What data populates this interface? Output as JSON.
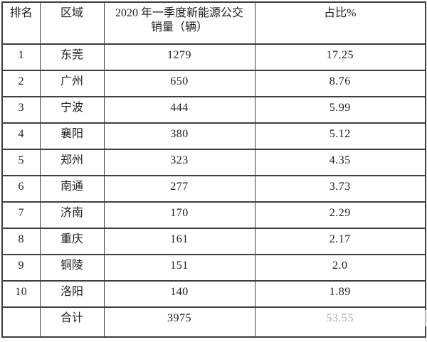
{
  "colors": {
    "border": "#3e3e3e",
    "text": "#1e1e1e",
    "background": "#ffffff"
  },
  "chart_data": {
    "type": "table",
    "columns": [
      "排名",
      "区域",
      "2020 年一季度新能源公交销量（辆）",
      "占比%"
    ],
    "header_lines": {
      "rank": "排名",
      "region": "区域",
      "sales_line1": "2020 年一季度新能源公交",
      "sales_line2": "销量（辆）",
      "share": "占比%"
    },
    "rows": [
      [
        "1",
        "东莞",
        "1279",
        "17.25"
      ],
      [
        "2",
        "广州",
        "650",
        "8.76"
      ],
      [
        "3",
        "宁波",
        "444",
        "5.99"
      ],
      [
        "4",
        "襄阳",
        "380",
        "5.12"
      ],
      [
        "5",
        "郑州",
        "323",
        "4.35"
      ],
      [
        "6",
        "南通",
        "277",
        "3.73"
      ],
      [
        "7",
        "济南",
        "170",
        "2.29"
      ],
      [
        "8",
        "重庆",
        "161",
        "2.17"
      ],
      [
        "9",
        "铜陵",
        "151",
        "2.0"
      ],
      [
        "10",
        "洛阳",
        "140",
        "1.89"
      ],
      [
        "",
        "合计",
        "3975",
        "53.55"
      ]
    ]
  }
}
